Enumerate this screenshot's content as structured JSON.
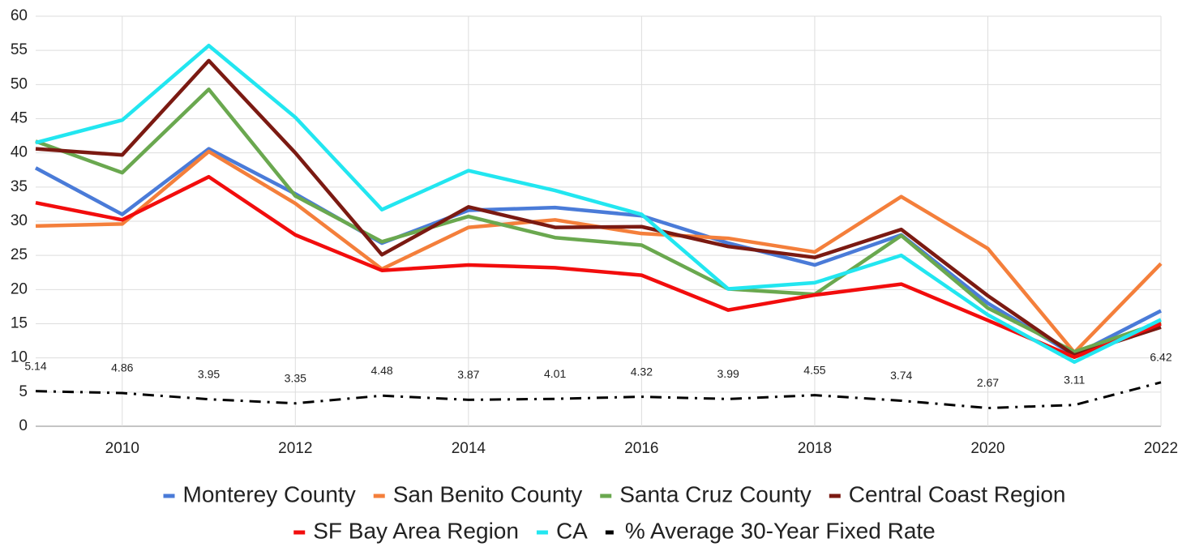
{
  "chart_data": {
    "type": "line",
    "x": [
      2009,
      2010,
      2011,
      2012,
      2013,
      2014,
      2015,
      2016,
      2017,
      2018,
      2019,
      2020,
      2021,
      2022
    ],
    "xlim": [
      2009,
      2022
    ],
    "xticks": [
      2010,
      2012,
      2014,
      2016,
      2018,
      2020,
      2022
    ],
    "ylim": [
      0,
      60
    ],
    "yticks": [
      0,
      5,
      10,
      15,
      20,
      25,
      30,
      35,
      40,
      45,
      50,
      55,
      60
    ],
    "grid": true,
    "legend": "bottom",
    "series": [
      {
        "name": "Monterey County",
        "color": "#4a7bd8",
        "values": [
          37.8,
          31,
          40.6,
          34,
          26.8,
          31.6,
          32,
          30.8,
          26.8,
          23.6,
          28,
          18,
          10.4,
          16.9
        ]
      },
      {
        "name": "San Benito County",
        "color": "#f47f3b",
        "values": [
          29.3,
          29.6,
          40.2,
          32.6,
          23,
          29.1,
          30.2,
          28.2,
          27.5,
          25.5,
          33.6,
          26,
          10.8,
          23.8
        ]
      },
      {
        "name": "Santa Cruz County",
        "color": "#6aa84f",
        "values": [
          41.7,
          37.1,
          49.3,
          33.7,
          27,
          30.7,
          27.6,
          26.5,
          20.1,
          19.3,
          27.9,
          17.3,
          10.9,
          15.2
        ]
      },
      {
        "name": "Central Coast Region",
        "color": "#7b1a12",
        "values": [
          40.6,
          39.7,
          53.5,
          40,
          25.1,
          32.1,
          29.1,
          29.2,
          26.3,
          24.7,
          28.8,
          19.1,
          10.4,
          14.5
        ]
      },
      {
        "name": "SF Bay Area Region",
        "color": "#f20d0d",
        "values": [
          32.7,
          30.2,
          36.5,
          28,
          22.8,
          23.6,
          23.2,
          22.1,
          17,
          19.2,
          20.8,
          15.5,
          10.1,
          15
        ]
      },
      {
        "name": "CA",
        "color": "#22e6f0",
        "values": [
          41.5,
          44.8,
          55.7,
          45.2,
          31.7,
          37.4,
          34.5,
          31,
          20.1,
          21,
          25,
          16.3,
          9.4,
          15.6
        ]
      },
      {
        "name": "% Average 30-Year Fixed Rate",
        "color": "#000000",
        "dash": "dashdot",
        "data_labels": true,
        "values": [
          5.14,
          4.86,
          3.95,
          3.35,
          4.48,
          3.87,
          4.01,
          4.32,
          3.99,
          4.55,
          3.74,
          2.67,
          3.11,
          6.42
        ]
      }
    ]
  }
}
